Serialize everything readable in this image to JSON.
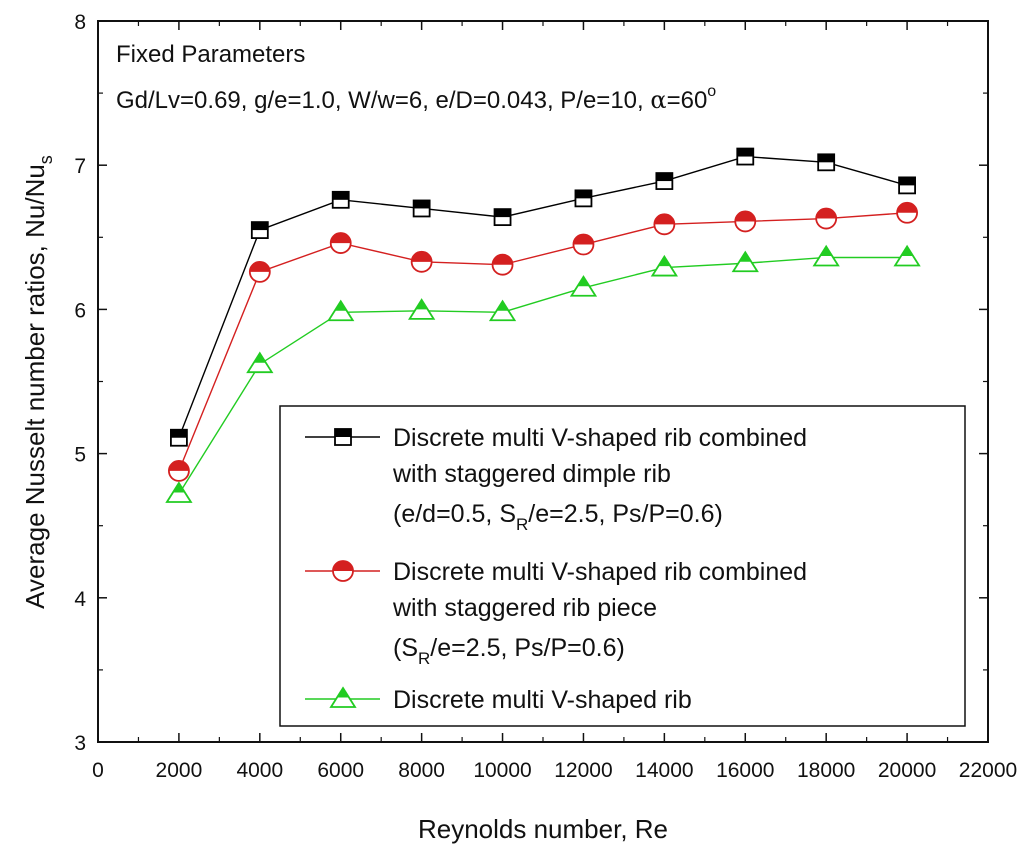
{
  "chart_data": {
    "type": "line",
    "xlabel": "Reynolds number, Re",
    "ylabel_main": "Average Nusselt number ratios, Nu/Nu",
    "ylabel_sub": "s",
    "xlim": [
      0,
      22000
    ],
    "ylim": [
      3,
      8
    ],
    "xticks": [
      0,
      2000,
      4000,
      6000,
      8000,
      10000,
      12000,
      14000,
      16000,
      18000,
      20000,
      22000
    ],
    "yticks": [
      3,
      4,
      5,
      6,
      7,
      8
    ],
    "annotation": {
      "title": "Fixed Parameters",
      "params": "Gd/Lv=0.69, g/e=1.0, W/w=6, e/D=0.043, P/e=10, ",
      "alpha_symbol": "α",
      "alpha_value": "=60",
      "degree": "o"
    },
    "x": [
      2000,
      4000,
      6000,
      8000,
      10000,
      12000,
      14000,
      16000,
      18000,
      20000
    ],
    "series": [
      {
        "name": "Discrete multi V-shaped rib combined with staggered dimple rib (e/d=0.5, SR/e=2.5, Ps/P=0.6)",
        "marker": "square-half",
        "color": "#000000",
        "values": [
          5.11,
          6.55,
          6.76,
          6.7,
          6.64,
          6.77,
          6.89,
          7.06,
          7.02,
          6.86
        ]
      },
      {
        "name": "Discrete multi V-shaped rib combined with staggered rib piece (SR/e=2.5, Ps/P=0.6)",
        "marker": "circle-half",
        "color": "#d42020",
        "values": [
          4.88,
          6.26,
          6.46,
          6.33,
          6.31,
          6.45,
          6.59,
          6.61,
          6.63,
          6.67
        ]
      },
      {
        "name": "Discrete multi V-shaped rib",
        "marker": "triangle",
        "color": "#22cc22",
        "values": [
          4.72,
          5.62,
          5.98,
          5.99,
          5.98,
          6.15,
          6.29,
          6.32,
          6.36,
          6.36
        ]
      }
    ],
    "legend": {
      "s1_line1": "Discrete multi V-shaped rib combined",
      "s1_line2": "with staggered dimple rib",
      "s1_line3a": "(e/d=0.5, S",
      "s1_line3sub": "R",
      "s1_line3b": "/e=2.5, Ps/P=0.6)",
      "s2_line1": "Discrete multi V-shaped rib combined",
      "s2_line2": "with staggered rib piece",
      "s2_line3a": "(S",
      "s2_line3sub": "R",
      "s2_line3b": "/e=2.5, Ps/P=0.6)",
      "s3_line1": "Discrete multi V-shaped rib"
    }
  }
}
